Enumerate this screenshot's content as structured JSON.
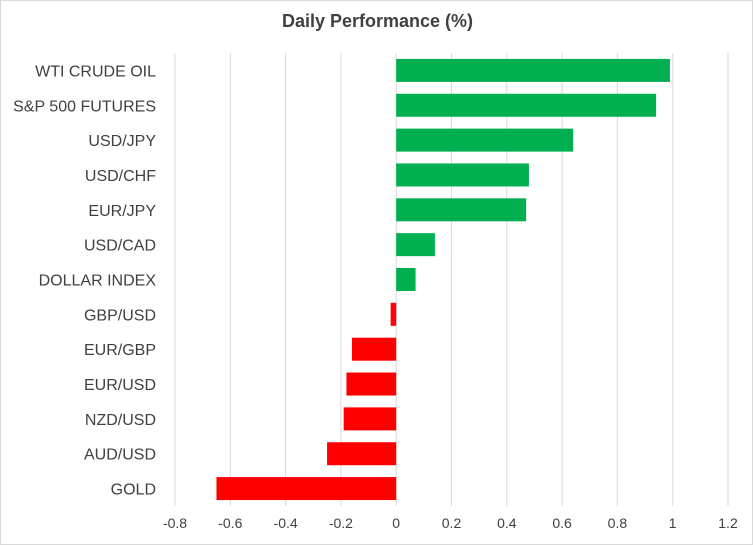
{
  "chart_data": {
    "type": "bar",
    "orientation": "horizontal",
    "title": "Daily Performance (%)",
    "xlabel": "",
    "ylabel": "",
    "categories": [
      "WTI CRUDE OIL",
      "S&P 500 FUTURES",
      "USD/JPY",
      "USD/CHF",
      "EUR/JPY",
      "USD/CAD",
      "DOLLAR INDEX",
      "GBP/USD",
      "EUR/GBP",
      "EUR/USD",
      "NZD/USD",
      "AUD/USD",
      "GOLD"
    ],
    "values": [
      0.99,
      0.94,
      0.64,
      0.48,
      0.47,
      0.14,
      0.07,
      -0.02,
      -0.16,
      -0.18,
      -0.19,
      -0.25,
      -0.65
    ],
    "xlim": [
      -0.8,
      1.2
    ],
    "xticks": [
      "-0.8",
      "-0.6",
      "-0.4",
      "-0.2",
      "0",
      "0.2",
      "0.4",
      "0.6",
      "0.8",
      "1",
      "1.2"
    ],
    "grid": "vertical",
    "legend": "none",
    "colors": {
      "positive": "#00b050",
      "negative": "#ff0000",
      "grid": "#d9d9d9"
    }
  }
}
